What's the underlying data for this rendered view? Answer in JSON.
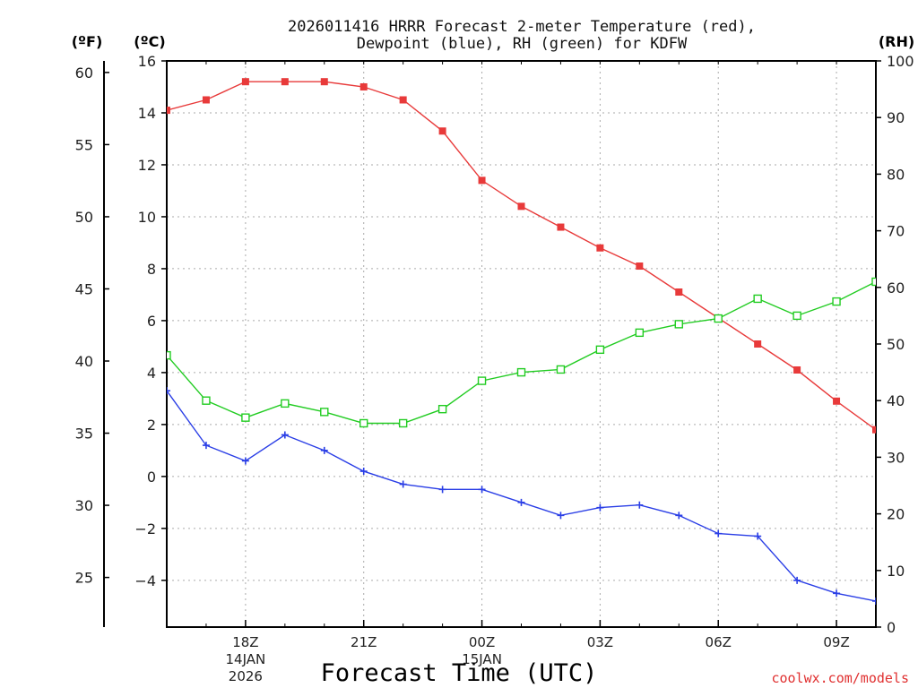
{
  "chart_data": {
    "type": "line",
    "title_line1": "2026011416 HRRR Forecast 2-meter Temperature (red),",
    "title_line2": "Dewpoint (blue), RH (green) for KDFW",
    "xlabel": "Forecast Time (UTC)",
    "credit": "coolwx.com/models",
    "units": {
      "fahrenheit": "(ºF)",
      "celsius": "(ºC)",
      "rh": "(RH)"
    },
    "x_hours": [
      16,
      17,
      18,
      19,
      20,
      21,
      22,
      23,
      24,
      25,
      26,
      27,
      28,
      29,
      30,
      31,
      32,
      33,
      34
    ],
    "x_ticks": [
      {
        "hour": 18,
        "label": "18Z",
        "date": "14JAN",
        "year": "2026"
      },
      {
        "hour": 21,
        "label": "21Z"
      },
      {
        "hour": 24,
        "label": "00Z",
        "date": "15JAN"
      },
      {
        "hour": 27,
        "label": "03Z"
      },
      {
        "hour": 30,
        "label": "06Z"
      },
      {
        "hour": 33,
        "label": "09Z"
      }
    ],
    "celsius_axis": {
      "min": -5.8,
      "max": 16.0,
      "ticks": [
        16,
        14,
        12,
        10,
        8,
        6,
        4,
        2,
        0,
        -2,
        -4
      ],
      "tick_labels": [
        "16",
        "14",
        "12",
        "10",
        "8",
        "6",
        "4",
        "2",
        "0",
        "−2",
        "−4"
      ]
    },
    "fahrenheit_axis": {
      "ticks": [
        60,
        55,
        50,
        45,
        40,
        35,
        30,
        25
      ]
    },
    "rh_axis": {
      "min": 0,
      "max": 100,
      "ticks": [
        100,
        90,
        80,
        70,
        60,
        50,
        40,
        30,
        20,
        10,
        0
      ]
    },
    "series": [
      {
        "name": "Temperature",
        "units": "C",
        "color": "#e83a3a",
        "marker": "filled-square",
        "values": [
          14.1,
          14.5,
          15.2,
          15.2,
          15.2,
          15.0,
          14.5,
          13.3,
          11.4,
          10.4,
          9.6,
          8.8,
          8.1,
          7.1,
          6.1,
          5.1,
          4.1,
          2.9,
          1.8
        ]
      },
      {
        "name": "Dewpoint",
        "units": "C",
        "color": "#2a3ee6",
        "marker": "plus",
        "values": [
          3.3,
          1.2,
          0.6,
          1.6,
          1.0,
          0.2,
          -0.3,
          -0.5,
          -0.5,
          -1.0,
          -1.5,
          -1.2,
          -1.1,
          -1.5,
          -2.2,
          -2.3,
          -4.0,
          -4.5,
          -4.8
        ]
      },
      {
        "name": "RH",
        "units": "%",
        "color": "#22cc22",
        "marker": "open-square",
        "values": [
          48,
          40,
          37,
          39.5,
          38,
          36,
          36,
          38.5,
          43.5,
          45,
          45.5,
          49,
          52,
          53.5,
          54.5,
          58,
          55,
          57.5,
          61
        ]
      }
    ]
  }
}
